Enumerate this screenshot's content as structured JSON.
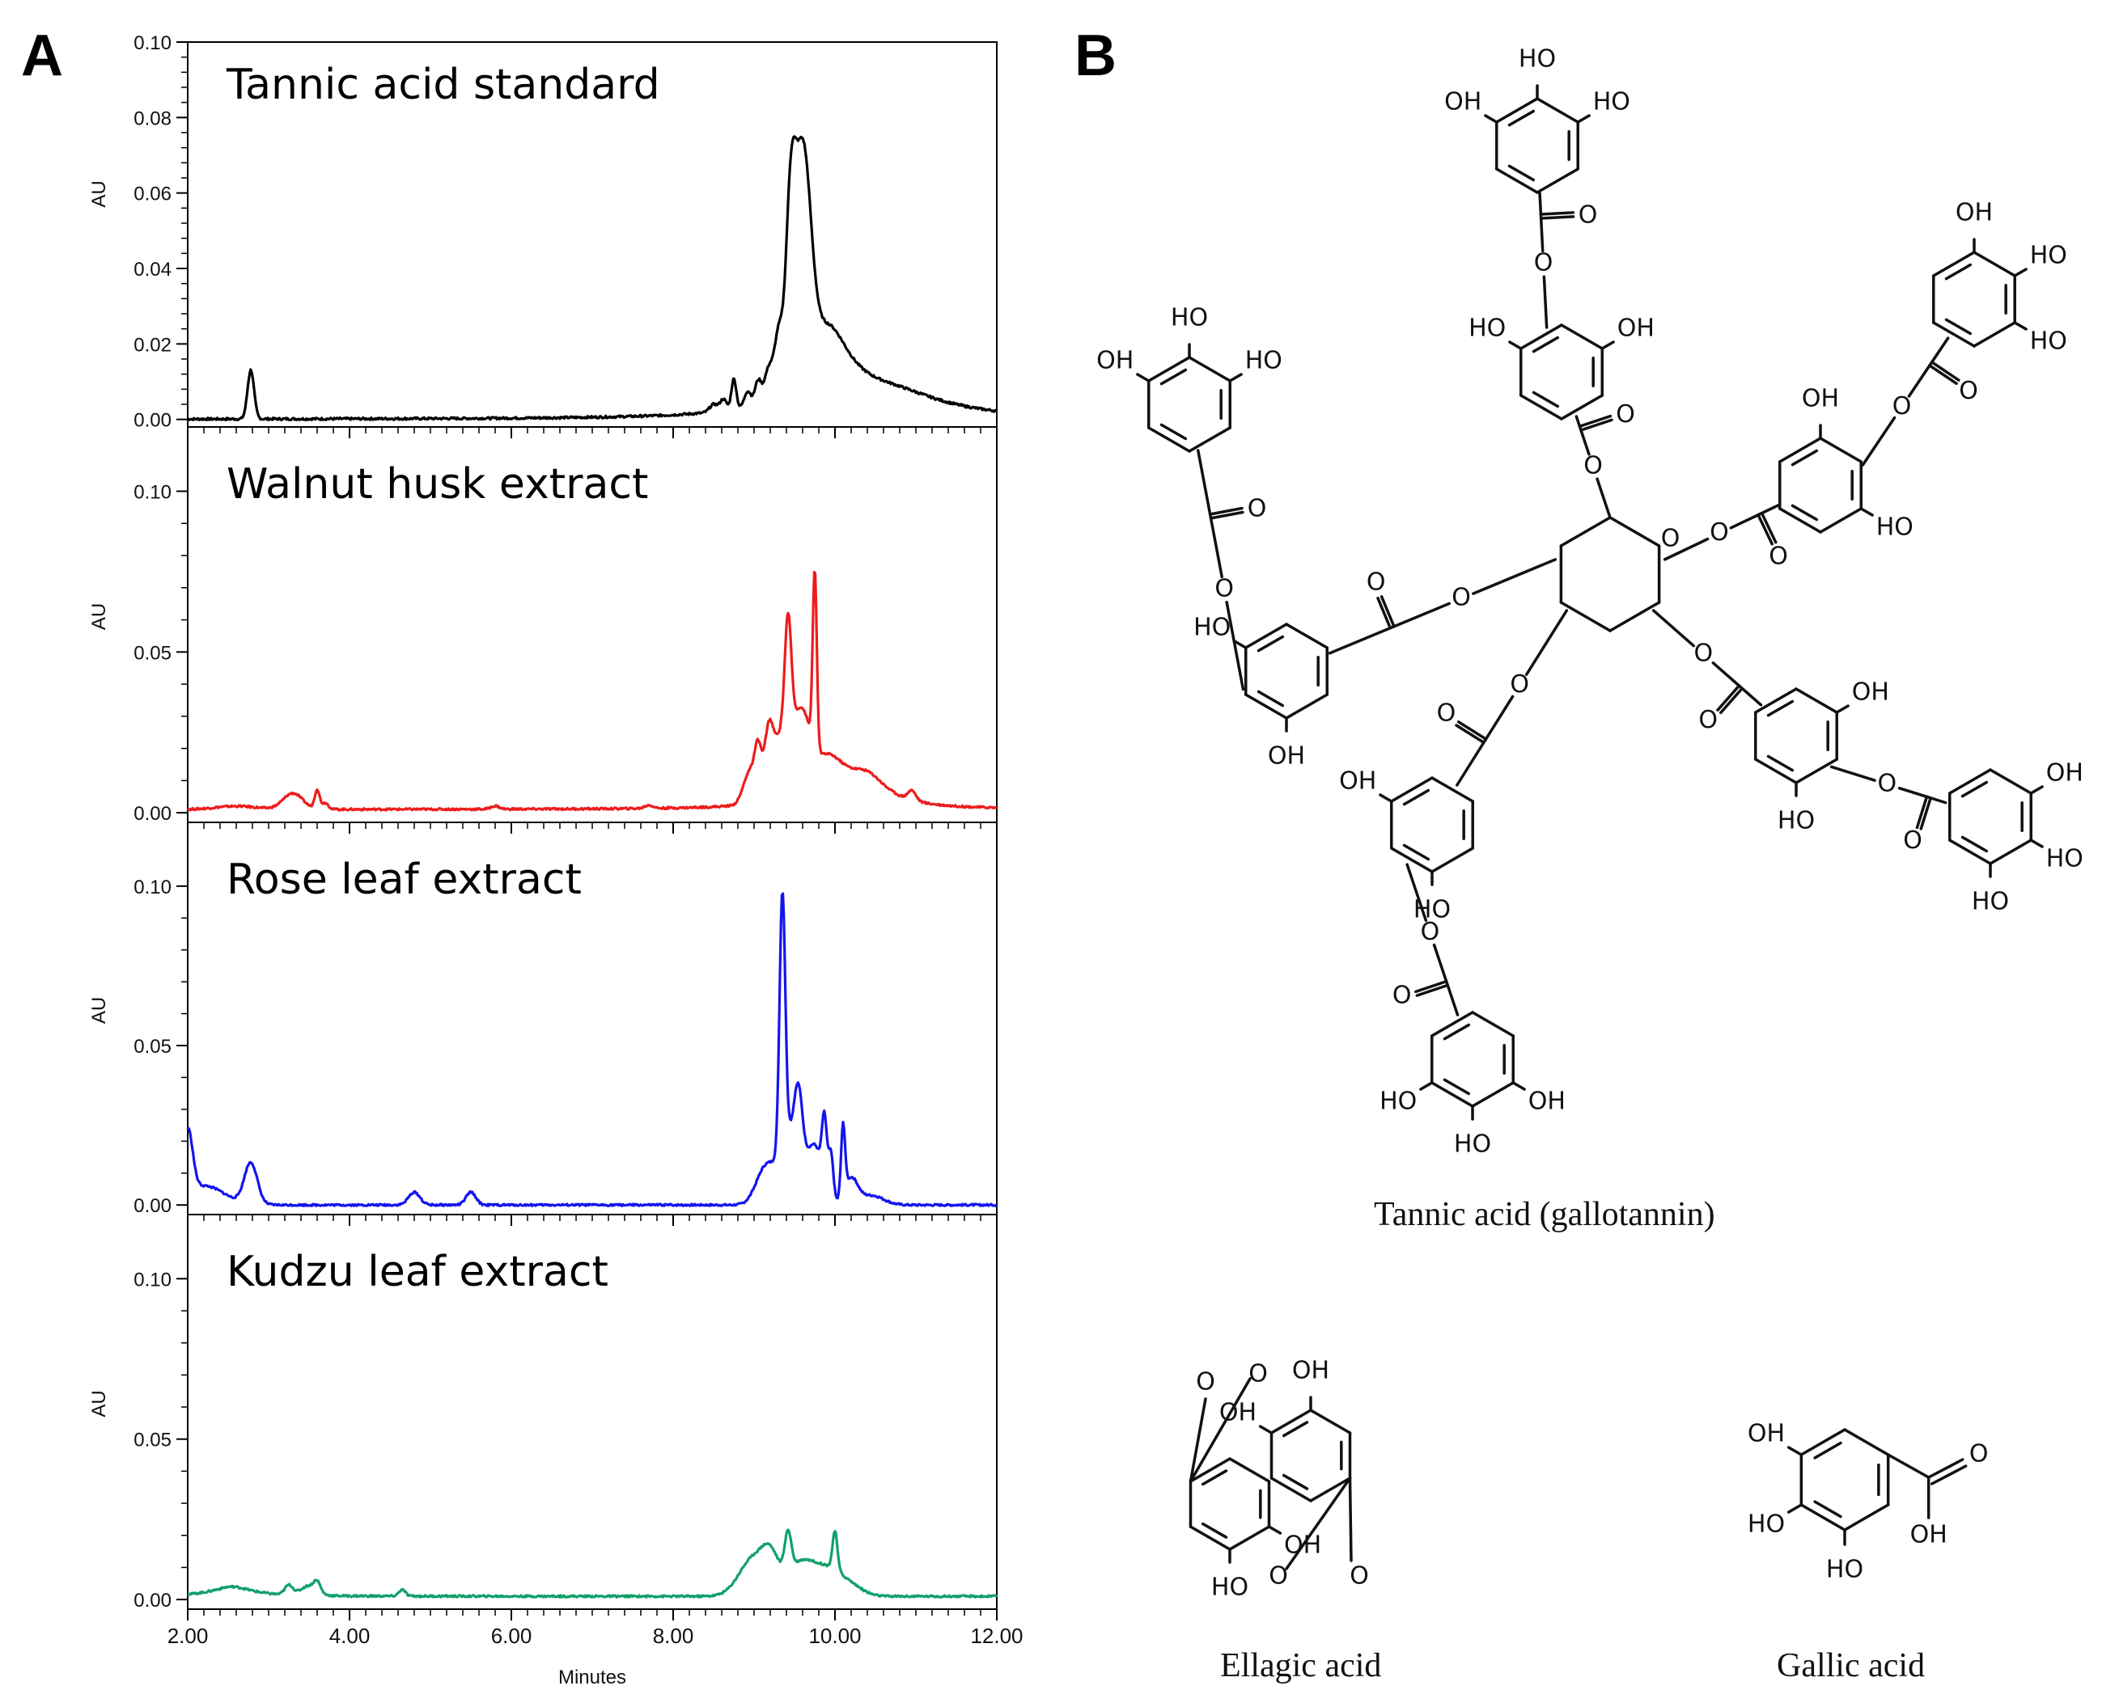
{
  "panels": {
    "a_label": "A",
    "b_label": "B"
  },
  "chart_data": {
    "type": "line",
    "xlabel": "Minutes",
    "ylabel": "AU",
    "xlim": [
      2.0,
      12.0
    ],
    "x_ticks": [
      "2.00",
      "4.00",
      "6.00",
      "8.00",
      "10.00",
      "12.00"
    ],
    "subplots": [
      {
        "title": "Tannic acid standard",
        "color": "#000000",
        "ylim": [
          -0.002,
          0.1
        ],
        "y_ticks": [
          "0.00",
          "0.02",
          "0.04",
          "0.06",
          "0.08",
          "0.10"
        ],
        "baseline": 0.0,
        "peaks": [
          {
            "x": 2.78,
            "h": 0.013,
            "w": 0.04
          },
          {
            "x": 8.5,
            "h": 0.002,
            "w": 0.05
          },
          {
            "x": 8.62,
            "h": 0.003,
            "w": 0.04
          },
          {
            "x": 8.75,
            "h": 0.008,
            "w": 0.03
          },
          {
            "x": 8.92,
            "h": 0.004,
            "w": 0.04
          },
          {
            "x": 9.05,
            "h": 0.006,
            "w": 0.04
          },
          {
            "x": 9.18,
            "h": 0.008,
            "w": 0.05
          },
          {
            "x": 9.3,
            "h": 0.015,
            "w": 0.05
          },
          {
            "x": 9.45,
            "h": 0.04,
            "w": 0.06
          },
          {
            "x": 9.6,
            "h": 0.058,
            "w": 0.1
          },
          {
            "x": 9.9,
            "h": 0.022,
            "w": 0.35
          },
          {
            "x": 10.7,
            "h": 0.006,
            "w": 0.8
          }
        ]
      },
      {
        "title": "Walnut husk extract",
        "color": "#ee1c1c",
        "ylim": [
          -0.003,
          0.12
        ],
        "y_ticks": [
          "0.00",
          "0.05",
          "0.10"
        ],
        "baseline": 0.001,
        "peaks": [
          {
            "x": 2.6,
            "h": 0.001,
            "w": 0.25
          },
          {
            "x": 3.3,
            "h": 0.005,
            "w": 0.12
          },
          {
            "x": 3.6,
            "h": 0.006,
            "w": 0.03
          },
          {
            "x": 3.7,
            "h": 0.002,
            "w": 0.04
          },
          {
            "x": 5.8,
            "h": 0.001,
            "w": 0.05
          },
          {
            "x": 7.7,
            "h": 0.001,
            "w": 0.05
          },
          {
            "x": 8.95,
            "h": 0.01,
            "w": 0.08
          },
          {
            "x": 9.05,
            "h": 0.012,
            "w": 0.04
          },
          {
            "x": 9.18,
            "h": 0.014,
            "w": 0.05
          },
          {
            "x": 9.35,
            "h": 0.02,
            "w": 0.15
          },
          {
            "x": 9.42,
            "h": 0.035,
            "w": 0.04
          },
          {
            "x": 9.6,
            "h": 0.018,
            "w": 0.1
          },
          {
            "x": 9.75,
            "h": 0.055,
            "w": 0.025
          },
          {
            "x": 9.9,
            "h": 0.015,
            "w": 0.3
          },
          {
            "x": 10.4,
            "h": 0.008,
            "w": 0.3
          },
          {
            "x": 10.95,
            "h": 0.003,
            "w": 0.05
          }
        ]
      },
      {
        "title": "Rose leaf extract",
        "color": "#1414ee",
        "ylim": [
          -0.003,
          0.12
        ],
        "y_ticks": [
          "0.00",
          "0.05",
          "0.10"
        ],
        "baseline": 0.0,
        "peaks": [
          {
            "x": 2.0,
            "h": 0.02,
            "w": 0.06
          },
          {
            "x": 2.2,
            "h": 0.006,
            "w": 0.25
          },
          {
            "x": 2.78,
            "h": 0.013,
            "w": 0.08
          },
          {
            "x": 4.8,
            "h": 0.004,
            "w": 0.07
          },
          {
            "x": 5.5,
            "h": 0.004,
            "w": 0.06
          },
          {
            "x": 9.15,
            "h": 0.012,
            "w": 0.12
          },
          {
            "x": 9.35,
            "h": 0.08,
            "w": 0.035
          },
          {
            "x": 9.45,
            "h": 0.022,
            "w": 0.12
          },
          {
            "x": 9.55,
            "h": 0.02,
            "w": 0.05
          },
          {
            "x": 9.75,
            "h": 0.018,
            "w": 0.1
          },
          {
            "x": 9.87,
            "h": 0.02,
            "w": 0.03
          },
          {
            "x": 9.95,
            "h": 0.014,
            "w": 0.03
          },
          {
            "x": 10.1,
            "h": 0.022,
            "w": 0.025
          },
          {
            "x": 10.2,
            "h": 0.008,
            "w": 0.08
          },
          {
            "x": 10.45,
            "h": 0.003,
            "w": 0.15
          }
        ]
      },
      {
        "title": "Kudzu leaf extract",
        "color": "#12a06a",
        "ylim": [
          -0.003,
          0.12
        ],
        "y_ticks": [
          "0.00",
          "0.05",
          "0.10"
        ],
        "baseline": 0.001,
        "peaks": [
          {
            "x": 2.55,
            "h": 0.003,
            "w": 0.3
          },
          {
            "x": 3.25,
            "h": 0.003,
            "w": 0.05
          },
          {
            "x": 3.5,
            "h": 0.003,
            "w": 0.1
          },
          {
            "x": 3.6,
            "h": 0.003,
            "w": 0.04
          },
          {
            "x": 4.65,
            "h": 0.002,
            "w": 0.04
          },
          {
            "x": 9.0,
            "h": 0.012,
            "w": 0.18
          },
          {
            "x": 9.2,
            "h": 0.008,
            "w": 0.1
          },
          {
            "x": 9.42,
            "h": 0.012,
            "w": 0.04
          },
          {
            "x": 9.6,
            "h": 0.011,
            "w": 0.2
          },
          {
            "x": 10.0,
            "h": 0.012,
            "w": 0.03
          },
          {
            "x": 9.95,
            "h": 0.006,
            "w": 0.15
          },
          {
            "x": 10.2,
            "h": 0.003,
            "w": 0.15
          }
        ]
      }
    ]
  },
  "structures": {
    "tannic_caption": "Tannic acid (gallotannin)",
    "ellagic_caption": "Ellagic acid",
    "gallic_caption": "Gallic acid",
    "oh_label": "OH",
    "ho_label": "HO",
    "o_label": "O"
  }
}
